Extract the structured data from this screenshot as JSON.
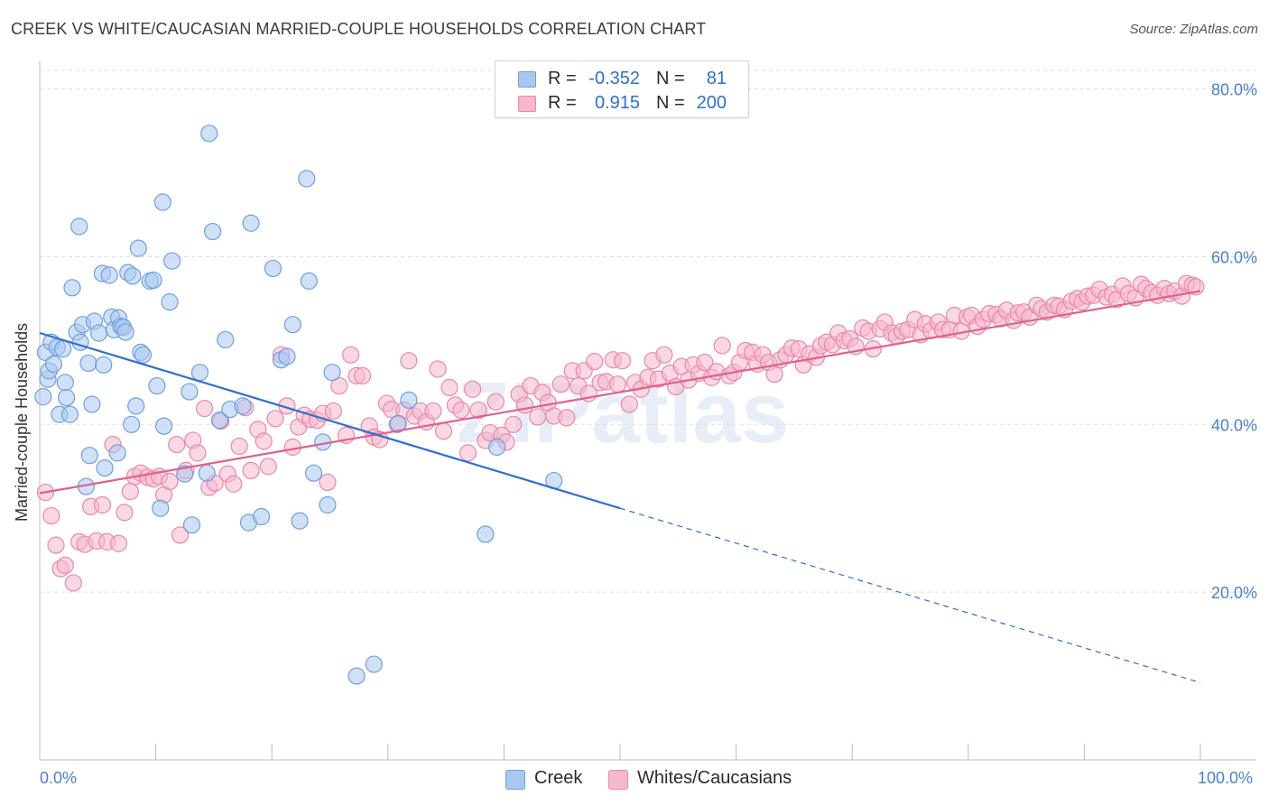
{
  "title": "CREEK VS WHITE/CAUCASIAN MARRIED-COUPLE HOUSEHOLDS CORRELATION CHART",
  "source": "Source: ZipAtlas.com",
  "watermark": "ZIPatlas",
  "colors": {
    "creek": "#a9c8f0",
    "creek_stroke": "#6d9fe0",
    "creek_line": "#2f6fd0",
    "whites": "#f5b8cc",
    "whites_stroke": "#e888a8",
    "whites_line": "#e0608a",
    "axis_text": "#4a80d0",
    "grid": "#dddddd"
  },
  "stats_legend": {
    "rows": [
      {
        "swatch": "creek",
        "r_label": "R =",
        "r_value": "-0.352",
        "n_label": "N =",
        "n_value": "81"
      },
      {
        "swatch": "whites",
        "r_label": "R =",
        "r_value": "0.915",
        "n_label": "N =",
        "n_value": "200"
      }
    ]
  },
  "bottom_legend": [
    {
      "label": "Creek",
      "swatch": "creek"
    },
    {
      "label": "Whites/Caucasians",
      "swatch": "whites"
    }
  ],
  "axes": {
    "ylabel": "Married-couple Households",
    "x_left_label": "0.0%",
    "x_right_label": "100.0%",
    "y_tick_labels": [
      "20.0%",
      "40.0%",
      "60.0%",
      "80.0%"
    ]
  },
  "chart_data": {
    "type": "scatter",
    "title": "CREEK VS WHITE/CAUCASIAN MARRIED-COUPLE HOUSEHOLDS CORRELATION CHART",
    "xlabel": "",
    "ylabel": "Married-couple Households",
    "xlim": [
      0,
      100
    ],
    "ylim": [
      0,
      82
    ],
    "y_ticks": [
      20,
      40,
      60,
      80
    ],
    "grid": true,
    "legend_position": "top-center",
    "series": [
      {
        "name": "Creek",
        "color": "creek",
        "r": -0.352,
        "n": 81,
        "trend": {
          "x0": 0,
          "y0": 50.9,
          "x1": 50,
          "y1": 30.0,
          "dashed_to_x": 100,
          "dashed_to_y": 9.2
        },
        "points": [
          [
            0.3,
            43.3
          ],
          [
            0.5,
            48.6
          ],
          [
            0.7,
            45.4
          ],
          [
            0.8,
            46.4
          ],
          [
            1.0,
            49.8
          ],
          [
            1.2,
            47.2
          ],
          [
            1.5,
            49.2
          ],
          [
            1.7,
            41.2
          ],
          [
            2.2,
            45.0
          ],
          [
            2.3,
            43.2
          ],
          [
            2.6,
            41.2
          ],
          [
            2.8,
            56.3
          ],
          [
            3.2,
            51.0
          ],
          [
            3.4,
            63.6
          ],
          [
            3.5,
            49.8
          ],
          [
            3.7,
            51.9
          ],
          [
            4.0,
            32.6
          ],
          [
            4.2,
            47.3
          ],
          [
            4.3,
            36.3
          ],
          [
            4.5,
            42.4
          ],
          [
            4.7,
            52.3
          ],
          [
            5.1,
            50.9
          ],
          [
            5.4,
            58.0
          ],
          [
            5.5,
            47.1
          ],
          [
            5.6,
            34.8
          ],
          [
            6.0,
            57.8
          ],
          [
            6.2,
            52.8
          ],
          [
            6.4,
            51.3
          ],
          [
            6.7,
            36.6
          ],
          [
            6.8,
            52.7
          ],
          [
            7.0,
            51.7
          ],
          [
            7.2,
            51.6
          ],
          [
            7.4,
            51.0
          ],
          [
            7.6,
            58.1
          ],
          [
            7.9,
            40.0
          ],
          [
            8.0,
            57.7
          ],
          [
            8.3,
            42.2
          ],
          [
            8.5,
            61.0
          ],
          [
            8.7,
            48.6
          ],
          [
            8.9,
            48.3
          ],
          [
            9.5,
            57.1
          ],
          [
            9.8,
            57.2
          ],
          [
            10.1,
            44.6
          ],
          [
            10.4,
            30.0
          ],
          [
            10.6,
            66.5
          ],
          [
            10.7,
            39.8
          ],
          [
            11.2,
            54.6
          ],
          [
            11.4,
            59.5
          ],
          [
            12.5,
            34.1
          ],
          [
            12.9,
            43.9
          ],
          [
            13.1,
            28.0
          ],
          [
            13.8,
            46.2
          ],
          [
            14.4,
            34.2
          ],
          [
            14.6,
            74.7
          ],
          [
            14.9,
            63.0
          ],
          [
            15.5,
            40.5
          ],
          [
            16.0,
            50.1
          ],
          [
            16.4,
            41.8
          ],
          [
            17.5,
            42.2
          ],
          [
            18.0,
            28.3
          ],
          [
            18.2,
            64.0
          ],
          [
            19.1,
            29.0
          ],
          [
            20.1,
            58.6
          ],
          [
            20.8,
            47.7
          ],
          [
            21.3,
            48.1
          ],
          [
            21.8,
            51.9
          ],
          [
            22.4,
            28.5
          ],
          [
            23.0,
            69.3
          ],
          [
            23.2,
            57.1
          ],
          [
            23.6,
            34.2
          ],
          [
            24.4,
            37.9
          ],
          [
            24.8,
            30.4
          ],
          [
            25.2,
            46.2
          ],
          [
            27.3,
            10.0
          ],
          [
            28.8,
            11.4
          ],
          [
            30.9,
            40.1
          ],
          [
            31.8,
            42.9
          ],
          [
            38.4,
            26.9
          ],
          [
            39.4,
            37.3
          ],
          [
            44.3,
            33.3
          ],
          [
            2.0,
            49.0
          ]
        ]
      },
      {
        "name": "Whites/Caucasians",
        "color": "whites",
        "r": 0.915,
        "n": 200,
        "trend": {
          "x0": 0,
          "y0": 31.8,
          "x1": 100,
          "y1": 55.9
        },
        "points": [
          [
            0.5,
            31.9
          ],
          [
            1.0,
            29.1
          ],
          [
            1.4,
            25.6
          ],
          [
            1.8,
            22.8
          ],
          [
            2.2,
            23.2
          ],
          [
            2.9,
            21.1
          ],
          [
            3.4,
            26.0
          ],
          [
            3.9,
            25.7
          ],
          [
            4.4,
            30.2
          ],
          [
            4.9,
            26.1
          ],
          [
            5.4,
            30.4
          ],
          [
            5.8,
            26.0
          ],
          [
            6.3,
            37.6
          ],
          [
            6.8,
            25.8
          ],
          [
            7.3,
            29.5
          ],
          [
            7.8,
            32.0
          ],
          [
            8.2,
            33.8
          ],
          [
            8.7,
            34.2
          ],
          [
            9.3,
            33.7
          ],
          [
            9.8,
            33.5
          ],
          [
            10.3,
            33.8
          ],
          [
            10.7,
            31.6
          ],
          [
            11.2,
            33.2
          ],
          [
            11.8,
            37.6
          ],
          [
            12.1,
            26.8
          ],
          [
            12.6,
            34.5
          ],
          [
            13.2,
            38.1
          ],
          [
            13.6,
            36.6
          ],
          [
            14.2,
            41.9
          ],
          [
            14.6,
            32.5
          ],
          [
            15.1,
            33.0
          ],
          [
            15.6,
            40.4
          ],
          [
            16.2,
            34.1
          ],
          [
            16.7,
            32.9
          ],
          [
            17.2,
            37.4
          ],
          [
            17.7,
            42.0
          ],
          [
            18.2,
            34.5
          ],
          [
            18.8,
            39.4
          ],
          [
            19.3,
            38.0
          ],
          [
            19.7,
            35.0
          ],
          [
            20.3,
            40.7
          ],
          [
            20.8,
            48.3
          ],
          [
            21.3,
            42.2
          ],
          [
            21.8,
            37.3
          ],
          [
            22.3,
            39.7
          ],
          [
            22.8,
            41.1
          ],
          [
            23.3,
            40.6
          ],
          [
            23.9,
            40.5
          ],
          [
            24.4,
            41.3
          ],
          [
            24.8,
            33.1
          ],
          [
            25.3,
            41.6
          ],
          [
            25.8,
            44.6
          ],
          [
            26.4,
            38.7
          ],
          [
            26.8,
            48.3
          ],
          [
            27.3,
            45.8
          ],
          [
            27.8,
            45.8
          ],
          [
            28.4,
            39.8
          ],
          [
            28.8,
            38.5
          ],
          [
            29.3,
            38.2
          ],
          [
            29.9,
            42.5
          ],
          [
            30.3,
            41.8
          ],
          [
            30.8,
            40.0
          ],
          [
            31.4,
            41.7
          ],
          [
            31.8,
            47.6
          ],
          [
            32.3,
            41.0
          ],
          [
            32.8,
            41.6
          ],
          [
            33.3,
            40.3
          ],
          [
            33.9,
            41.6
          ],
          [
            34.3,
            46.6
          ],
          [
            34.8,
            39.2
          ],
          [
            35.3,
            44.4
          ],
          [
            35.8,
            42.3
          ],
          [
            36.3,
            41.7
          ],
          [
            36.9,
            36.6
          ],
          [
            37.3,
            44.2
          ],
          [
            37.8,
            41.7
          ],
          [
            38.4,
            38.1
          ],
          [
            38.8,
            39.0
          ],
          [
            39.3,
            42.7
          ],
          [
            39.8,
            38.7
          ],
          [
            40.2,
            37.9
          ],
          [
            40.8,
            40.0
          ],
          [
            41.3,
            43.6
          ],
          [
            41.8,
            42.3
          ],
          [
            42.3,
            44.6
          ],
          [
            42.9,
            40.9
          ],
          [
            43.3,
            43.8
          ],
          [
            43.8,
            42.6
          ],
          [
            44.3,
            41.0
          ],
          [
            44.9,
            44.8
          ],
          [
            45.4,
            40.8
          ],
          [
            45.9,
            46.4
          ],
          [
            46.4,
            44.6
          ],
          [
            46.9,
            46.4
          ],
          [
            47.3,
            43.7
          ],
          [
            47.8,
            47.5
          ],
          [
            48.3,
            45.0
          ],
          [
            48.8,
            45.1
          ],
          [
            49.4,
            47.7
          ],
          [
            49.8,
            44.8
          ],
          [
            50.2,
            47.6
          ],
          [
            50.8,
            42.4
          ],
          [
            51.3,
            45.0
          ],
          [
            51.8,
            44.2
          ],
          [
            52.4,
            45.6
          ],
          [
            52.8,
            47.6
          ],
          [
            53.3,
            45.4
          ],
          [
            53.8,
            48.3
          ],
          [
            54.3,
            46.1
          ],
          [
            54.8,
            44.5
          ],
          [
            55.3,
            46.9
          ],
          [
            55.9,
            45.3
          ],
          [
            56.3,
            47.1
          ],
          [
            56.8,
            46.1
          ],
          [
            57.3,
            47.4
          ],
          [
            57.9,
            45.6
          ],
          [
            58.3,
            46.3
          ],
          [
            58.8,
            49.4
          ],
          [
            59.4,
            45.8
          ],
          [
            59.8,
            46.2
          ],
          [
            60.3,
            47.4
          ],
          [
            60.8,
            48.8
          ],
          [
            61.4,
            48.6
          ],
          [
            61.8,
            47.2
          ],
          [
            62.3,
            48.3
          ],
          [
            62.8,
            47.4
          ],
          [
            63.3,
            46.0
          ],
          [
            63.8,
            47.7
          ],
          [
            64.3,
            48.3
          ],
          [
            64.8,
            49.1
          ],
          [
            65.4,
            49.0
          ],
          [
            65.8,
            47.1
          ],
          [
            66.3,
            48.4
          ],
          [
            66.9,
            48.0
          ],
          [
            67.3,
            49.4
          ],
          [
            67.8,
            49.8
          ],
          [
            68.3,
            49.5
          ],
          [
            68.8,
            50.9
          ],
          [
            69.3,
            50.0
          ],
          [
            69.8,
            50.2
          ],
          [
            70.3,
            49.3
          ],
          [
            70.9,
            51.5
          ],
          [
            71.4,
            51.1
          ],
          [
            71.8,
            49.0
          ],
          [
            72.4,
            51.4
          ],
          [
            72.8,
            52.2
          ],
          [
            73.4,
            50.9
          ],
          [
            73.8,
            50.5
          ],
          [
            74.3,
            51.1
          ],
          [
            74.8,
            51.3
          ],
          [
            75.4,
            52.5
          ],
          [
            75.9,
            50.7
          ],
          [
            76.3,
            52.0
          ],
          [
            76.8,
            51.2
          ],
          [
            77.4,
            52.2
          ],
          [
            77.8,
            51.3
          ],
          [
            78.4,
            51.3
          ],
          [
            78.8,
            53.0
          ],
          [
            79.4,
            51.1
          ],
          [
            79.9,
            52.8
          ],
          [
            80.3,
            53.0
          ],
          [
            80.8,
            51.7
          ],
          [
            81.3,
            52.5
          ],
          [
            81.8,
            53.2
          ],
          [
            82.4,
            53.1
          ],
          [
            82.8,
            52.6
          ],
          [
            83.3,
            53.6
          ],
          [
            83.9,
            52.4
          ],
          [
            84.3,
            53.3
          ],
          [
            84.8,
            53.4
          ],
          [
            85.3,
            52.8
          ],
          [
            85.9,
            54.2
          ],
          [
            86.3,
            53.8
          ],
          [
            86.8,
            53.4
          ],
          [
            87.4,
            54.2
          ],
          [
            87.8,
            54.1
          ],
          [
            88.3,
            53.7
          ],
          [
            88.9,
            54.7
          ],
          [
            89.4,
            55.0
          ],
          [
            89.8,
            54.6
          ],
          [
            90.3,
            55.3
          ],
          [
            90.8,
            55.4
          ],
          [
            91.3,
            56.1
          ],
          [
            91.9,
            55.2
          ],
          [
            92.4,
            55.5
          ],
          [
            92.8,
            54.9
          ],
          [
            93.3,
            56.5
          ],
          [
            93.8,
            55.6
          ],
          [
            94.4,
            55.1
          ],
          [
            94.9,
            56.7
          ],
          [
            95.3,
            56.2
          ],
          [
            95.8,
            55.7
          ],
          [
            96.3,
            55.4
          ],
          [
            96.9,
            56.2
          ],
          [
            97.3,
            55.6
          ],
          [
            97.8,
            55.9
          ],
          [
            98.4,
            55.3
          ],
          [
            98.8,
            56.8
          ],
          [
            99.3,
            56.6
          ],
          [
            99.6,
            56.4
          ]
        ]
      }
    ]
  }
}
